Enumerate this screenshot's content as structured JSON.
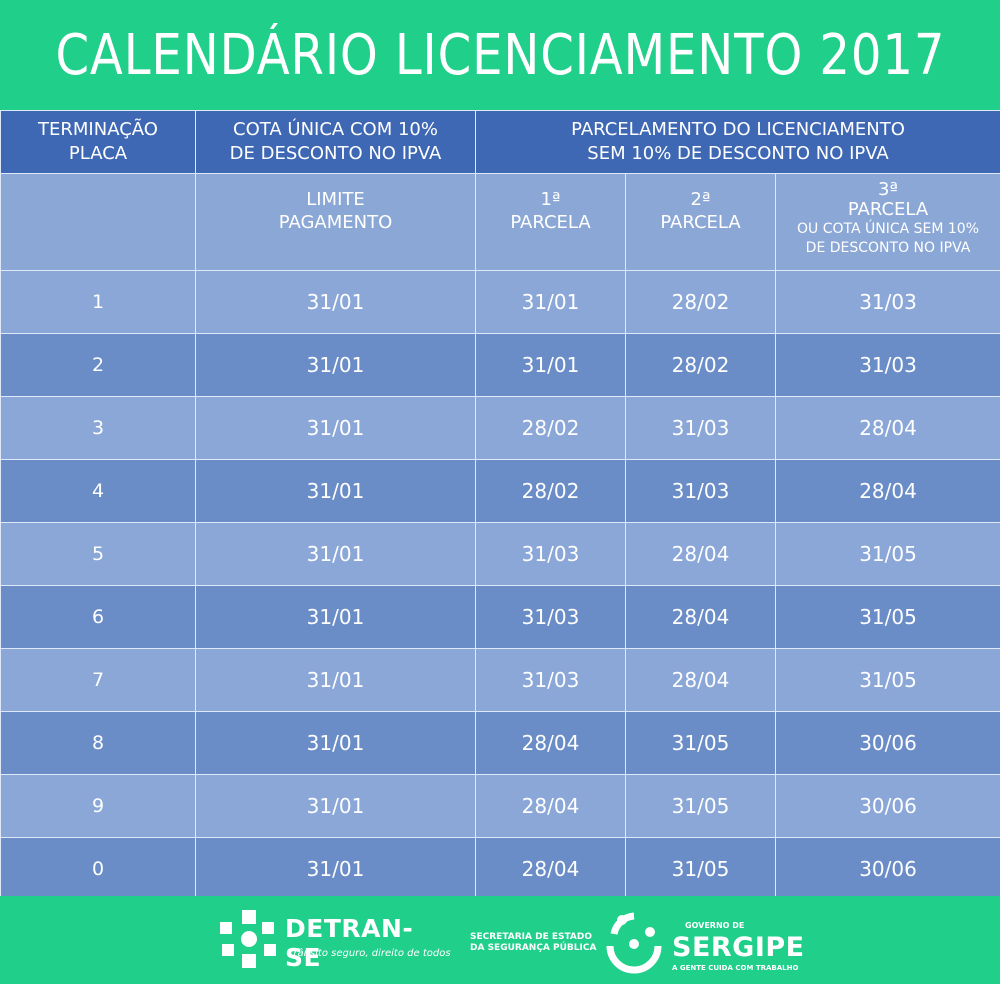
{
  "title": "CALENDÁRIO LICENCIAMENTO 2017",
  "header": {
    "col1": [
      "TERMINAÇÃO",
      "PLACA"
    ],
    "col2": [
      "COTA ÚNICA COM 10%",
      "DE DESCONTO NO IPVA"
    ],
    "col3": [
      "PARCELAMENTO DO LICENCIAMENTO",
      "SEM 10% DE DESCONTO NO IPVA"
    ]
  },
  "subheader": {
    "limite": [
      "LIMITE",
      "PAGAMENTO"
    ],
    "p1": [
      "1ª",
      "PARCELA"
    ],
    "p2": [
      "2ª",
      "PARCELA"
    ],
    "p3": [
      "3ª",
      "PARCELA"
    ],
    "p3_note": [
      "OU COTA ÚNICA SEM 10%",
      "DE DESCONTO NO IPVA"
    ]
  },
  "rows": [
    {
      "plate": "1",
      "limite": "31/01",
      "p1": "31/01",
      "p2": "28/02",
      "p3": "31/03"
    },
    {
      "plate": "2",
      "limite": "31/01",
      "p1": "31/01",
      "p2": "28/02",
      "p3": "31/03"
    },
    {
      "plate": "3",
      "limite": "31/01",
      "p1": "28/02",
      "p2": "31/03",
      "p3": "28/04"
    },
    {
      "plate": "4",
      "limite": "31/01",
      "p1": "28/02",
      "p2": "31/03",
      "p3": "28/04"
    },
    {
      "plate": "5",
      "limite": "31/01",
      "p1": "31/03",
      "p2": "28/04",
      "p3": "31/05"
    },
    {
      "plate": "6",
      "limite": "31/01",
      "p1": "31/03",
      "p2": "28/04",
      "p3": "31/05"
    },
    {
      "plate": "7",
      "limite": "31/01",
      "p1": "31/03",
      "p2": "28/04",
      "p3": "31/05"
    },
    {
      "plate": "8",
      "limite": "31/01",
      "p1": "28/04",
      "p2": "31/05",
      "p3": "30/06"
    },
    {
      "plate": "9",
      "limite": "31/01",
      "p1": "28/04",
      "p2": "31/05",
      "p3": "30/06"
    },
    {
      "plate": "0",
      "limite": "31/01",
      "p1": "28/04",
      "p2": "31/05",
      "p3": "30/06"
    }
  ],
  "footer": {
    "detran_name": "DETRAN-SE",
    "detran_slogan": "Trânsito seguro, direito de todos",
    "secretaria": [
      "SECRETARIA DE ESTADO",
      "DA SEGURANÇA PÚBLICA"
    ],
    "gov_small": "GOVERNO DE",
    "gov_name": "SERGIPE",
    "gov_slogan": "A GENTE CUIDA COM TRABALHO"
  },
  "colors": {
    "green": "#1fcf8a",
    "header_blue": "#3f68b4",
    "row_dark": "#6a8cc7",
    "row_light": "#8aa7d8"
  }
}
